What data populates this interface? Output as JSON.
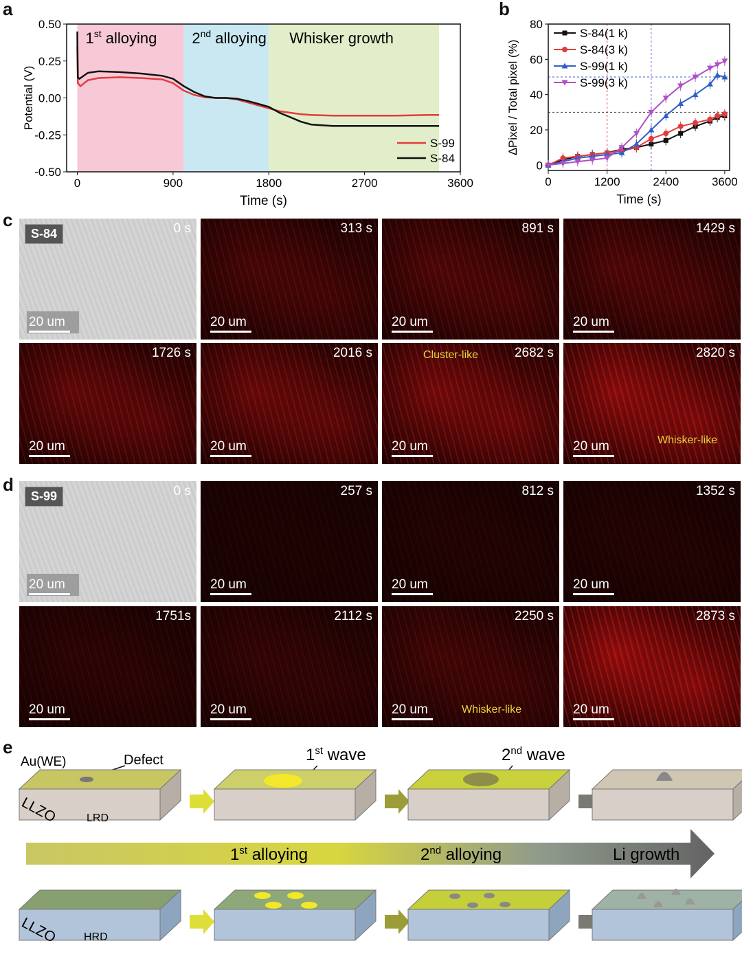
{
  "panel_labels": {
    "a": "a",
    "b": "b",
    "c": "c",
    "d": "d",
    "e": "e"
  },
  "chart_data": [
    {
      "type": "line",
      "panel": "a",
      "xlabel": "Time (s)",
      "ylabel": "Potential (V)",
      "xlim": [
        -100,
        3600
      ],
      "ylim": [
        -0.5,
        0.5
      ],
      "xticks": [
        0,
        900,
        1800,
        2700,
        3600
      ],
      "yticks": [
        0.5,
        0.25,
        0.0,
        -0.25,
        -0.5
      ],
      "ytick_labels": [
        "0.50",
        "0.25",
        "0.00",
        "-0.25",
        "-0.50"
      ],
      "regions": [
        {
          "parts": [
            "1",
            "st",
            "  alloying"
          ],
          "x": [
            0,
            1000
          ],
          "color": "#f7c8d6"
        },
        {
          "parts": [
            "2",
            "nd",
            "  alloying"
          ],
          "x": [
            1000,
            1800
          ],
          "color": "#c9e8f1"
        },
        {
          "parts": [
            "Whisker growth",
            "",
            ""
          ],
          "x": [
            1800,
            3400
          ],
          "color": "#e1eec9"
        }
      ],
      "series": [
        {
          "name": "S-99",
          "color": "#e33b3b",
          "x": [
            0,
            5,
            30,
            100,
            200,
            400,
            600,
            800,
            900,
            1000,
            1100,
            1200,
            1300,
            1400,
            1500,
            1600,
            1700,
            1800,
            1900,
            2000,
            2100,
            2200,
            2400,
            2700,
            3000,
            3300,
            3400
          ],
          "y": [
            0.35,
            0.1,
            0.08,
            0.12,
            0.135,
            0.14,
            0.135,
            0.125,
            0.1,
            0.05,
            0.02,
            0.005,
            0.0,
            0.0,
            -0.01,
            -0.03,
            -0.05,
            -0.07,
            -0.09,
            -0.1,
            -0.11,
            -0.115,
            -0.12,
            -0.12,
            -0.12,
            -0.115,
            -0.115
          ]
        },
        {
          "name": "S-84",
          "color": "#111111",
          "x": [
            0,
            5,
            20,
            100,
            200,
            400,
            600,
            800,
            900,
            1000,
            1100,
            1200,
            1300,
            1400,
            1500,
            1600,
            1700,
            1800,
            1850,
            1900,
            2000,
            2100,
            2200,
            2300,
            2400,
            2700,
            3000,
            3300,
            3400
          ],
          "y": [
            0.45,
            0.14,
            0.13,
            0.17,
            0.18,
            0.175,
            0.165,
            0.15,
            0.13,
            0.08,
            0.04,
            0.01,
            0.0,
            0.0,
            -0.005,
            -0.02,
            -0.04,
            -0.06,
            -0.08,
            -0.1,
            -0.13,
            -0.16,
            -0.18,
            -0.185,
            -0.19,
            -0.19,
            -0.19,
            -0.19,
            -0.19
          ]
        }
      ],
      "legend": "bottom-right"
    },
    {
      "type": "line",
      "panel": "b",
      "xlabel": "Time  (s)",
      "ylabel": "∆Pixel / Total pixel (%)",
      "xlim": [
        0,
        3700
      ],
      "ylim": [
        -3,
        80
      ],
      "xticks": [
        0,
        1200,
        2400,
        3600
      ],
      "yticks": [
        0,
        20,
        40,
        60,
        80
      ],
      "ref_lines": {
        "v": [
          1200,
          2100
        ],
        "h": [
          30,
          50
        ]
      },
      "series": [
        {
          "name": "S-84(1 k)",
          "color": "#111111",
          "marker": "square",
          "x": [
            0,
            300,
            600,
            900,
            1200,
            1500,
            1800,
            2100,
            2400,
            2700,
            3000,
            3300,
            3450,
            3600
          ],
          "y": [
            0,
            3,
            5,
            6,
            7,
            9,
            10,
            12,
            14,
            18,
            22,
            25,
            27,
            28
          ]
        },
        {
          "name": "S-84(3 k)",
          "color": "#e33b3b",
          "marker": "circle",
          "x": [
            0,
            300,
            600,
            900,
            1200,
            1500,
            1800,
            2100,
            2400,
            2700,
            3000,
            3300,
            3450,
            3600
          ],
          "y": [
            0,
            4,
            5,
            6,
            7,
            8,
            10,
            15,
            18,
            22,
            24,
            26,
            28,
            29
          ]
        },
        {
          "name": "S-99(1 k)",
          "color": "#2f5fc8",
          "marker": "triangle",
          "x": [
            0,
            300,
            600,
            900,
            1200,
            1500,
            1800,
            2100,
            2400,
            2700,
            3000,
            3300,
            3450,
            3600
          ],
          "y": [
            0,
            2,
            4,
            5,
            6,
            7,
            12,
            20,
            28,
            35,
            40,
            46,
            51,
            50
          ]
        },
        {
          "name": "S-99(3 k)",
          "color": "#b14fc5",
          "marker": "triangle-down",
          "x": [
            0,
            300,
            600,
            900,
            1200,
            1500,
            1800,
            2100,
            2400,
            2700,
            3000,
            3300,
            3450,
            3600
          ],
          "y": [
            0,
            1,
            2,
            3,
            4,
            10,
            18,
            30,
            38,
            45,
            50,
            55,
            57,
            59
          ]
        }
      ],
      "legend": "top-left"
    }
  ],
  "panel_c": {
    "badge": "S-84",
    "scale": "20 um",
    "times": [
      "0 s",
      "313 s",
      "891 s",
      "1429 s",
      "1726 s",
      "2016 s",
      "2682 s",
      "2820 s"
    ],
    "annotation_cluster": "Cluster-like",
    "annotation_whisker": "Whisker-like"
  },
  "panel_d": {
    "badge": "S-99",
    "scale": "20 um",
    "times": [
      "0 s",
      "257 s",
      "812 s",
      "1352 s",
      "1751s",
      "2112 s",
      "2250 s",
      "2873 s"
    ],
    "annotation_whisker": "Whisker-like"
  },
  "panel_e": {
    "au_label": "Au(WE)",
    "defect_label": "Defect",
    "llzo_label": "LLZO",
    "lrd_label": "LRD",
    "hrd_label": "HRD",
    "wave1": {
      "n": "1",
      "sup": "st",
      "word": " wave"
    },
    "wave2": {
      "n": "2",
      "sup": "nd",
      "word": " wave"
    },
    "arrow_stage1": {
      "n": "1",
      "sup": "st",
      "word": " alloying"
    },
    "arrow_stage2": {
      "n": "2",
      "sup": "nd",
      "word": " alloying"
    },
    "arrow_stage3": "Li growth"
  }
}
